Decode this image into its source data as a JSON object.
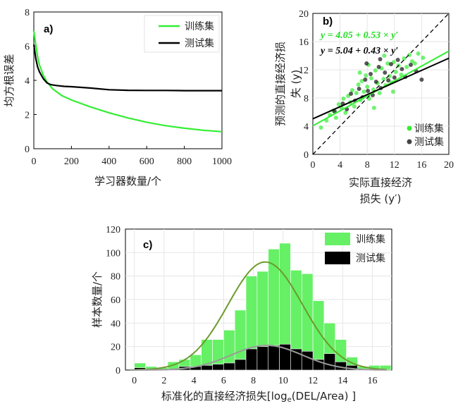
{
  "colors": {
    "train": "#33ee33",
    "test": "#000000",
    "train_fit": "#6b9a2c",
    "test_fit": "#9a9a9a"
  },
  "chart_data": [
    {
      "panel": "a)",
      "type": "line",
      "xlabel": "学习器数量/个",
      "ylabel": "均方根误差",
      "xlim": [
        0,
        1000
      ],
      "ylim": [
        0,
        8
      ],
      "xticks": [
        0,
        200,
        400,
        600,
        800,
        1000
      ],
      "yticks": [
        0,
        2,
        4,
        6,
        8
      ],
      "legend_placement": "top-right",
      "series": [
        {
          "name": "训练集",
          "color": "#33ee33",
          "x": [
            0,
            10,
            20,
            30,
            50,
            70,
            100,
            150,
            200,
            300,
            400,
            500,
            600,
            700,
            800,
            900,
            1000
          ],
          "y": [
            6.9,
            6.1,
            5.4,
            4.9,
            4.3,
            3.9,
            3.5,
            3.1,
            2.85,
            2.45,
            2.1,
            1.8,
            1.55,
            1.35,
            1.2,
            1.08,
            1.0
          ]
        },
        {
          "name": "测试集",
          "color": "#000000",
          "x": [
            0,
            10,
            20,
            30,
            50,
            70,
            90,
            120,
            160,
            200,
            300,
            400,
            500,
            600,
            700,
            800,
            900,
            1000
          ],
          "y": [
            6.1,
            5.3,
            4.8,
            4.5,
            4.1,
            3.85,
            3.75,
            3.7,
            3.65,
            3.63,
            3.55,
            3.45,
            3.42,
            3.41,
            3.41,
            3.4,
            3.4,
            3.4
          ]
        }
      ]
    },
    {
      "panel": "b)",
      "type": "scatter",
      "xlabel_line1": "实际直接经济",
      "xlabel_line2": "损失 (y′)",
      "ylabel_line1": "预测的直接经济损",
      "ylabel_line2": "失 (y)",
      "xlim": [
        0,
        20
      ],
      "ylim": [
        0,
        20
      ],
      "xticks": [
        0,
        4,
        8,
        12,
        16,
        20
      ],
      "yticks": [
        0,
        4,
        8,
        12,
        16,
        20
      ],
      "legend_placement": "bottom-right",
      "equations": [
        "y = 4.05 + 0.53 × y′",
        "y = 5.04 + 0.43 × y′"
      ],
      "fits": [
        {
          "name": "训练集",
          "intercept": 4.05,
          "slope": 0.53,
          "color": "#33ee33"
        },
        {
          "name": "测试集",
          "intercept": 5.04,
          "slope": 0.43,
          "color": "#000000"
        }
      ],
      "series": [
        {
          "name": "训练集",
          "color": "#33ee33",
          "points": [
            [
              1.2,
              3.8
            ],
            [
              2.0,
              4.8
            ],
            [
              2.5,
              5.6
            ],
            [
              3.0,
              6.2
            ],
            [
              3.4,
              5.2
            ],
            [
              3.8,
              7.1
            ],
            [
              4.2,
              6.6
            ],
            [
              4.5,
              7.9
            ],
            [
              4.8,
              5.9
            ],
            [
              5.2,
              8.3
            ],
            [
              5.5,
              7.4
            ],
            [
              5.8,
              9.1
            ],
            [
              6.1,
              6.8
            ],
            [
              6.4,
              8.7
            ],
            [
              6.7,
              9.9
            ],
            [
              7.0,
              7.7
            ],
            [
              7.2,
              10.4
            ],
            [
              7.5,
              8.9
            ],
            [
              7.8,
              11.2
            ],
            [
              8.0,
              9.6
            ],
            [
              8.3,
              7.9
            ],
            [
              8.6,
              10.8
            ],
            [
              8.9,
              9.2
            ],
            [
              9.2,
              11.9
            ],
            [
              9.5,
              10.1
            ],
            [
              9.8,
              8.7
            ],
            [
              10.1,
              12.2
            ],
            [
              10.4,
              10.7
            ],
            [
              10.7,
              9.8
            ],
            [
              11.0,
              12.9
            ],
            [
              11.3,
              11.1
            ],
            [
              11.6,
              10.2
            ],
            [
              11.9,
              13.1
            ],
            [
              12.2,
              11.7
            ],
            [
              12.6,
              12.6
            ],
            [
              13.0,
              11.3
            ],
            [
              13.4,
              13.6
            ],
            [
              13.8,
              12.4
            ],
            [
              14.2,
              14.1
            ],
            [
              14.6,
              13.2
            ],
            [
              15.0,
              12.9
            ],
            [
              15.5,
              14.3
            ],
            [
              16.2,
              13.7
            ],
            [
              6.9,
              11.6
            ],
            [
              8.2,
              12.7
            ],
            [
              9.0,
              6.6
            ],
            [
              10.5,
              14.0
            ],
            [
              11.8,
              8.9
            ]
          ]
        },
        {
          "name": "测试集",
          "color": "#111111",
          "points": [
            [
              3.2,
              6.1
            ],
            [
              4.4,
              7.2
            ],
            [
              5.0,
              6.4
            ],
            [
              5.6,
              8.6
            ],
            [
              6.2,
              7.6
            ],
            [
              6.8,
              9.3
            ],
            [
              7.3,
              8.1
            ],
            [
              7.7,
              10.6
            ],
            [
              8.1,
              9.0
            ],
            [
              8.5,
              11.4
            ],
            [
              8.8,
              8.4
            ],
            [
              9.3,
              10.3
            ],
            [
              9.7,
              12.4
            ],
            [
              10.0,
              9.4
            ],
            [
              10.6,
              11.6
            ],
            [
              11.1,
              10.5
            ],
            [
              11.5,
              12.8
            ],
            [
              12.0,
              10.9
            ],
            [
              12.5,
              13.4
            ],
            [
              13.1,
              12.1
            ],
            [
              13.6,
              11.0
            ],
            [
              14.4,
              12.7
            ],
            [
              15.2,
              11.8
            ],
            [
              16.0,
              10.6
            ],
            [
              7.9,
              12.9
            ],
            [
              9.9,
              13.5
            ]
          ]
        }
      ]
    },
    {
      "panel": "c)",
      "type": "bar",
      "xlabel_prefix": "标准化的直接经济损失[log",
      "xlabel_sub": "e",
      "xlabel_suffix": "(DEL/Area) ]",
      "ylabel": "样本数量/个",
      "xlim": [
        -0.6,
        17.3
      ],
      "ylim": [
        0,
        120
      ],
      "xticks": [
        0,
        2,
        4,
        6,
        8,
        10,
        12,
        14,
        16
      ],
      "yticks": [
        0,
        20,
        40,
        60,
        80,
        100,
        120
      ],
      "legend_placement": "top-right",
      "bin_width": 0.75,
      "bin_centers": [
        0.375,
        1.125,
        1.875,
        2.625,
        3.375,
        4.125,
        4.875,
        5.625,
        6.375,
        7.125,
        7.875,
        8.625,
        9.375,
        10.125,
        10.875,
        11.625,
        12.375,
        13.125,
        13.875,
        14.625,
        15.375,
        16.125,
        16.875
      ],
      "series": [
        {
          "name": "训练集",
          "color": "#66f066",
          "values": [
            6,
            3,
            2,
            7,
            9,
            13,
            26,
            26,
            34,
            51,
            80,
            84,
            103,
            108,
            85,
            82,
            59,
            40,
            26,
            11,
            3,
            4,
            4
          ]
        },
        {
          "name": "测试集",
          "color": "#000000",
          "values": [
            2,
            1,
            0,
            1,
            3,
            3,
            4,
            5,
            6,
            9,
            18,
            20,
            21,
            22,
            18,
            16,
            9,
            14,
            7,
            4,
            1,
            0,
            0
          ]
        }
      ],
      "fits": [
        {
          "name": "训练集",
          "mean": 8.8,
          "sd": 2.5,
          "peak": 92,
          "color": "#6b9a2c"
        },
        {
          "name": "测试集",
          "mean": 8.9,
          "sd": 2.4,
          "peak": 21,
          "color": "#9a9a9a"
        }
      ]
    }
  ]
}
